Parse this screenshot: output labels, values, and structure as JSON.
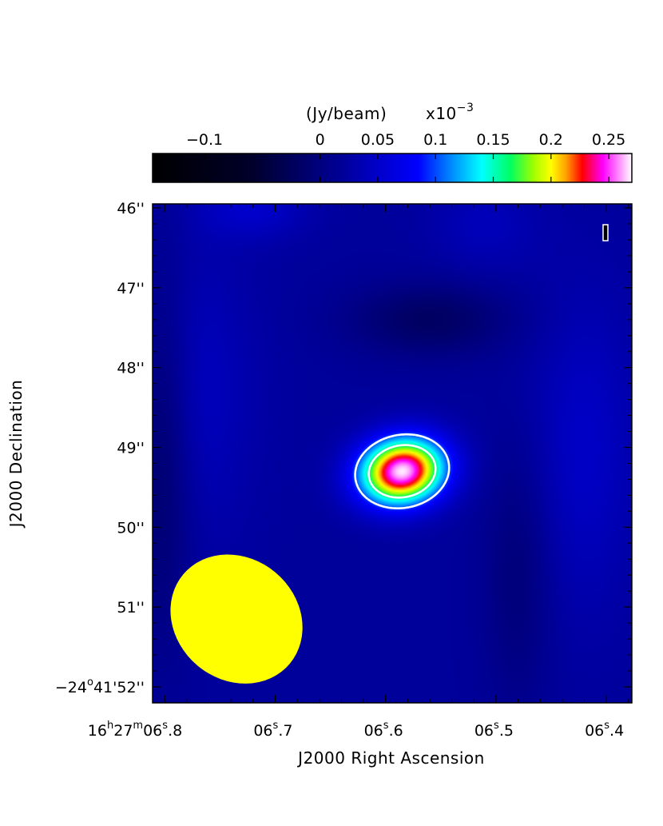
{
  "chart_data": {
    "type": "heatmap",
    "colorbar": {
      "label": "(Jy/beam)",
      "exponent_base": "x10",
      "exponent": "−3",
      "ticks": [
        {
          "value": -0.1,
          "label": "−0.1"
        },
        {
          "value": 0,
          "label": "0"
        },
        {
          "value": 0.05,
          "label": "0.05"
        },
        {
          "value": 0.1,
          "label": "0.1"
        },
        {
          "value": 0.15,
          "label": "0.15"
        },
        {
          "value": 0.2,
          "label": "0.2"
        },
        {
          "value": 0.25,
          "label": "0.25"
        }
      ],
      "range": [
        -0.145,
        0.27
      ],
      "stops": [
        {
          "value": -0.145,
          "color": "#000000"
        },
        {
          "value": -0.06,
          "color": "#00002a"
        },
        {
          "value": 0.02,
          "color": "#00009a"
        },
        {
          "value": 0.085,
          "color": "#0000ff"
        },
        {
          "value": 0.115,
          "color": "#0090ff"
        },
        {
          "value": 0.14,
          "color": "#00ffff"
        },
        {
          "value": 0.165,
          "color": "#00ff60"
        },
        {
          "value": 0.185,
          "color": "#a0ff00"
        },
        {
          "value": 0.2,
          "color": "#ffff00"
        },
        {
          "value": 0.213,
          "color": "#ffa000"
        },
        {
          "value": 0.227,
          "color": "#ff0000"
        },
        {
          "value": 0.245,
          "color": "#ff00ff"
        },
        {
          "value": 0.27,
          "color": "#ffffff"
        }
      ]
    },
    "xlabel": "J2000 Right Ascension",
    "ylabel": "J2000 Declination",
    "xlim": [
      6.811,
      6.377
    ],
    "ylim": [
      52.2,
      45.95
    ],
    "xticks": [
      {
        "value": 6.8,
        "prefix": "16",
        "hours": "h",
        "minutes": "27",
        "m": "m",
        "seconds": "06",
        "s": "s",
        "frac": ".8"
      },
      {
        "value": 6.7,
        "prefix": "",
        "seconds": "06",
        "s": "s",
        "frac": ".7"
      },
      {
        "value": 6.6,
        "prefix": "",
        "seconds": "06",
        "s": "s",
        "frac": ".6"
      },
      {
        "value": 6.5,
        "prefix": "",
        "seconds": "06",
        "s": "s",
        "frac": ".5"
      },
      {
        "value": 6.4,
        "prefix": "",
        "seconds": "06",
        "s": "s",
        "frac": ".4"
      }
    ],
    "yticks": [
      {
        "value": 46,
        "label": "46''"
      },
      {
        "value": 47,
        "label": "47''"
      },
      {
        "value": 48,
        "label": "48''"
      },
      {
        "value": 49,
        "label": "49''"
      },
      {
        "value": 50,
        "label": "50''"
      },
      {
        "value": 51,
        "label": "51''"
      },
      {
        "value": 52,
        "deg": "−24",
        "o": "o",
        "rest": "41'52''"
      }
    ],
    "source": {
      "ra": 6.585,
      "dec": 49.3,
      "peak": 0.268
    },
    "contours": [
      {
        "level": 0.1,
        "color": "#ffffff"
      },
      {
        "level": 0.16,
        "color": "#ffffff"
      }
    ],
    "beam": {
      "ra": 6.735,
      "dec": 51.15,
      "color": "#ffff00"
    },
    "background_level": 0.02
  }
}
